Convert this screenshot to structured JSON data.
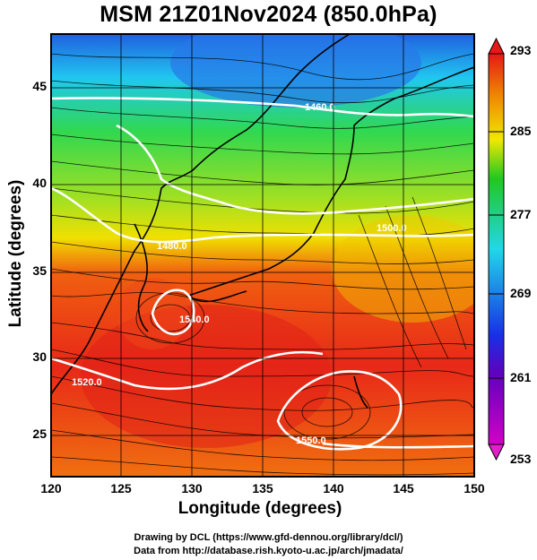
{
  "title": "MSM 21Z01Nov2024 (850.0hPa)",
  "x_axis": {
    "label": "Longitude (degrees)",
    "ticks": [
      "120",
      "125",
      "130",
      "135",
      "140",
      "145",
      "150"
    ]
  },
  "y_axis": {
    "label": "Latitude  (degrees)",
    "ticks": [
      "25",
      "30",
      "35",
      "40",
      "45"
    ]
  },
  "colorbar": {
    "ticks": [
      "293",
      "285",
      "277",
      "269",
      "261",
      "253"
    ],
    "colors": [
      "#d400c8",
      "#1830e8",
      "#20d8e8",
      "#20c820",
      "#f0e800",
      "#f08000",
      "#e81818"
    ]
  },
  "contour_labels": [
    "1460.0",
    "1480.0",
    "1500.0",
    "1520.0",
    "1540.0",
    "1550.0"
  ],
  "credits": {
    "line1": "Drawing by DCL (https://www.gfd-dennou.org/library/dcl/)",
    "line2": "Data from http://database.rish.kyoto-u.ac.jp/arch/jmadata/"
  }
}
